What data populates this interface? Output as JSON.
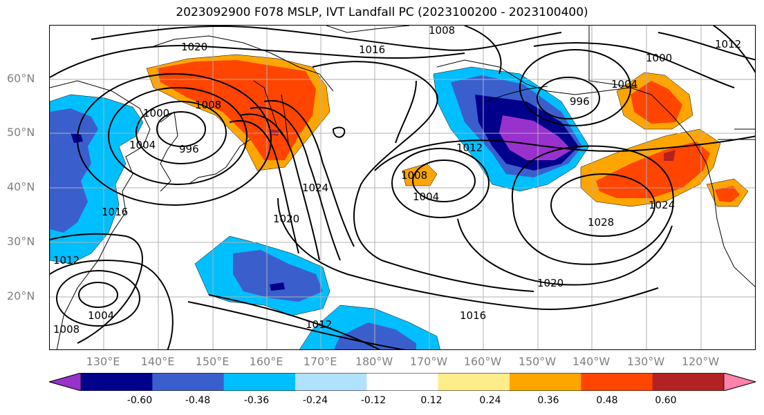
{
  "title": "2023092900 F078 MSLP, IVT Landfall PC (2023100200 - 2023100400)",
  "latitude_labels": [
    "60°N",
    "50°N",
    "40°N",
    "30°N",
    "20°N"
  ],
  "longitude_labels": [
    "130°E",
    "140°E",
    "150°E",
    "160°E",
    "170°E",
    "180°W",
    "170°W",
    "160°W",
    "150°W",
    "140°W",
    "130°W",
    "120°W"
  ],
  "colorbar": {
    "tick_labels": [
      "-0.60",
      "-0.48",
      "-0.36",
      "-0.24",
      "-0.12",
      "0.12",
      "0.24",
      "0.36",
      "0.48",
      "0.60"
    ],
    "colors": [
      "#9932cc",
      "#00008b",
      "#3a5fcd",
      "#00bfff",
      "#b0e2ff",
      "#ffffff",
      "#ffec8b",
      "#ffa500",
      "#ff4500",
      "#b22222",
      "#ff82ab"
    ]
  },
  "contour_labels": [
    "1008",
    "1016",
    "1020",
    "1008",
    "996",
    "1004",
    "1000",
    "996",
    "1004",
    "1000",
    "1012",
    "1008",
    "1004",
    "1020",
    "1024",
    "1028",
    "1024",
    "1016",
    "1012",
    "1004",
    "1008",
    "1020",
    "1016",
    "1012",
    "1012"
  ]
}
